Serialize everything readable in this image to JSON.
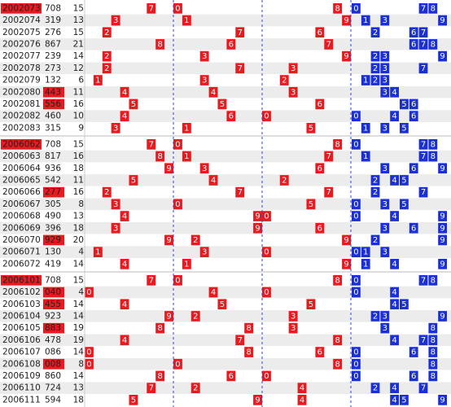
{
  "blocks": [
    {
      "rows": [
        {
          "issue": "2002073",
          "number": "708",
          "sum": 15,
          "digits": [
            7,
            0,
            8
          ],
          "highlight": "issue"
        },
        {
          "issue": "2002074",
          "number": "319",
          "sum": 13,
          "digits": [
            3,
            1,
            9
          ]
        },
        {
          "issue": "2002075",
          "number": "276",
          "sum": 15,
          "digits": [
            2,
            7,
            6
          ]
        },
        {
          "issue": "2002076",
          "number": "867",
          "sum": 21,
          "digits": [
            8,
            6,
            7
          ]
        },
        {
          "issue": "2002077",
          "number": "239",
          "sum": 14,
          "digits": [
            2,
            3,
            9
          ]
        },
        {
          "issue": "2002078",
          "number": "273",
          "sum": 12,
          "digits": [
            2,
            7,
            3
          ]
        },
        {
          "issue": "2002079",
          "number": "132",
          "sum": 6,
          "digits": [
            1,
            3,
            2
          ]
        },
        {
          "issue": "2002080",
          "number": "443",
          "sum": 11,
          "digits": [
            4,
            4,
            3
          ],
          "highlight": "number"
        },
        {
          "issue": "2002081",
          "number": "556",
          "sum": 16,
          "digits": [
            5,
            5,
            6
          ],
          "highlight": "number"
        },
        {
          "issue": "2002082",
          "number": "460",
          "sum": 10,
          "digits": [
            4,
            6,
            0
          ]
        },
        {
          "issue": "2002083",
          "number": "315",
          "sum": 9,
          "digits": [
            3,
            1,
            5
          ]
        }
      ]
    },
    {
      "rows": [
        {
          "issue": "2006062",
          "number": "708",
          "sum": 15,
          "digits": [
            7,
            0,
            8
          ],
          "highlight": "issue"
        },
        {
          "issue": "2006063",
          "number": "817",
          "sum": 16,
          "digits": [
            8,
            1,
            7
          ]
        },
        {
          "issue": "2006064",
          "number": "936",
          "sum": 18,
          "digits": [
            9,
            3,
            6
          ]
        },
        {
          "issue": "2006065",
          "number": "542",
          "sum": 11,
          "digits": [
            5,
            4,
            2
          ]
        },
        {
          "issue": "2006066",
          "number": "277",
          "sum": 16,
          "digits": [
            2,
            7,
            7
          ],
          "highlight": "number"
        },
        {
          "issue": "2006067",
          "number": "305",
          "sum": 8,
          "digits": [
            3,
            0,
            5
          ]
        },
        {
          "issue": "2006068",
          "number": "490",
          "sum": 13,
          "digits": [
            4,
            9,
            0
          ]
        },
        {
          "issue": "2006069",
          "number": "396",
          "sum": 18,
          "digits": [
            3,
            9,
            6
          ]
        },
        {
          "issue": "2006070",
          "number": "929",
          "sum": 20,
          "digits": [
            9,
            2,
            9
          ],
          "highlight": "number"
        },
        {
          "issue": "2006071",
          "number": "130",
          "sum": 4,
          "digits": [
            1,
            3,
            0
          ]
        },
        {
          "issue": "2006072",
          "number": "419",
          "sum": 14,
          "digits": [
            4,
            1,
            9
          ]
        }
      ]
    },
    {
      "rows": [
        {
          "issue": "2006101",
          "number": "708",
          "sum": 15,
          "digits": [
            7,
            0,
            8
          ],
          "highlight": "issue"
        },
        {
          "issue": "2006102",
          "number": "040",
          "sum": 4,
          "digits": [
            0,
            4,
            0
          ],
          "highlight": "number"
        },
        {
          "issue": "2006103",
          "number": "455",
          "sum": 14,
          "digits": [
            4,
            5,
            5
          ],
          "highlight": "number"
        },
        {
          "issue": "2006104",
          "number": "923",
          "sum": 14,
          "digits": [
            9,
            2,
            3
          ]
        },
        {
          "issue": "2006105",
          "number": "883",
          "sum": 19,
          "digits": [
            8,
            8,
            3
          ],
          "highlight": "number"
        },
        {
          "issue": "2006106",
          "number": "478",
          "sum": 19,
          "digits": [
            4,
            7,
            8
          ]
        },
        {
          "issue": "2006107",
          "number": "086",
          "sum": 14,
          "digits": [
            0,
            8,
            6
          ]
        },
        {
          "issue": "2006108",
          "number": "008",
          "sum": 8,
          "digits": [
            0,
            0,
            8
          ],
          "highlight": "number"
        },
        {
          "issue": "2006109",
          "number": "860",
          "sum": 14,
          "digits": [
            8,
            6,
            0
          ]
        },
        {
          "issue": "2006110",
          "number": "724",
          "sum": 13,
          "digits": [
            7,
            2,
            4
          ]
        },
        {
          "issue": "2006111",
          "number": "594",
          "sum": 18,
          "digits": [
            5,
            9,
            4
          ]
        }
      ]
    }
  ]
}
